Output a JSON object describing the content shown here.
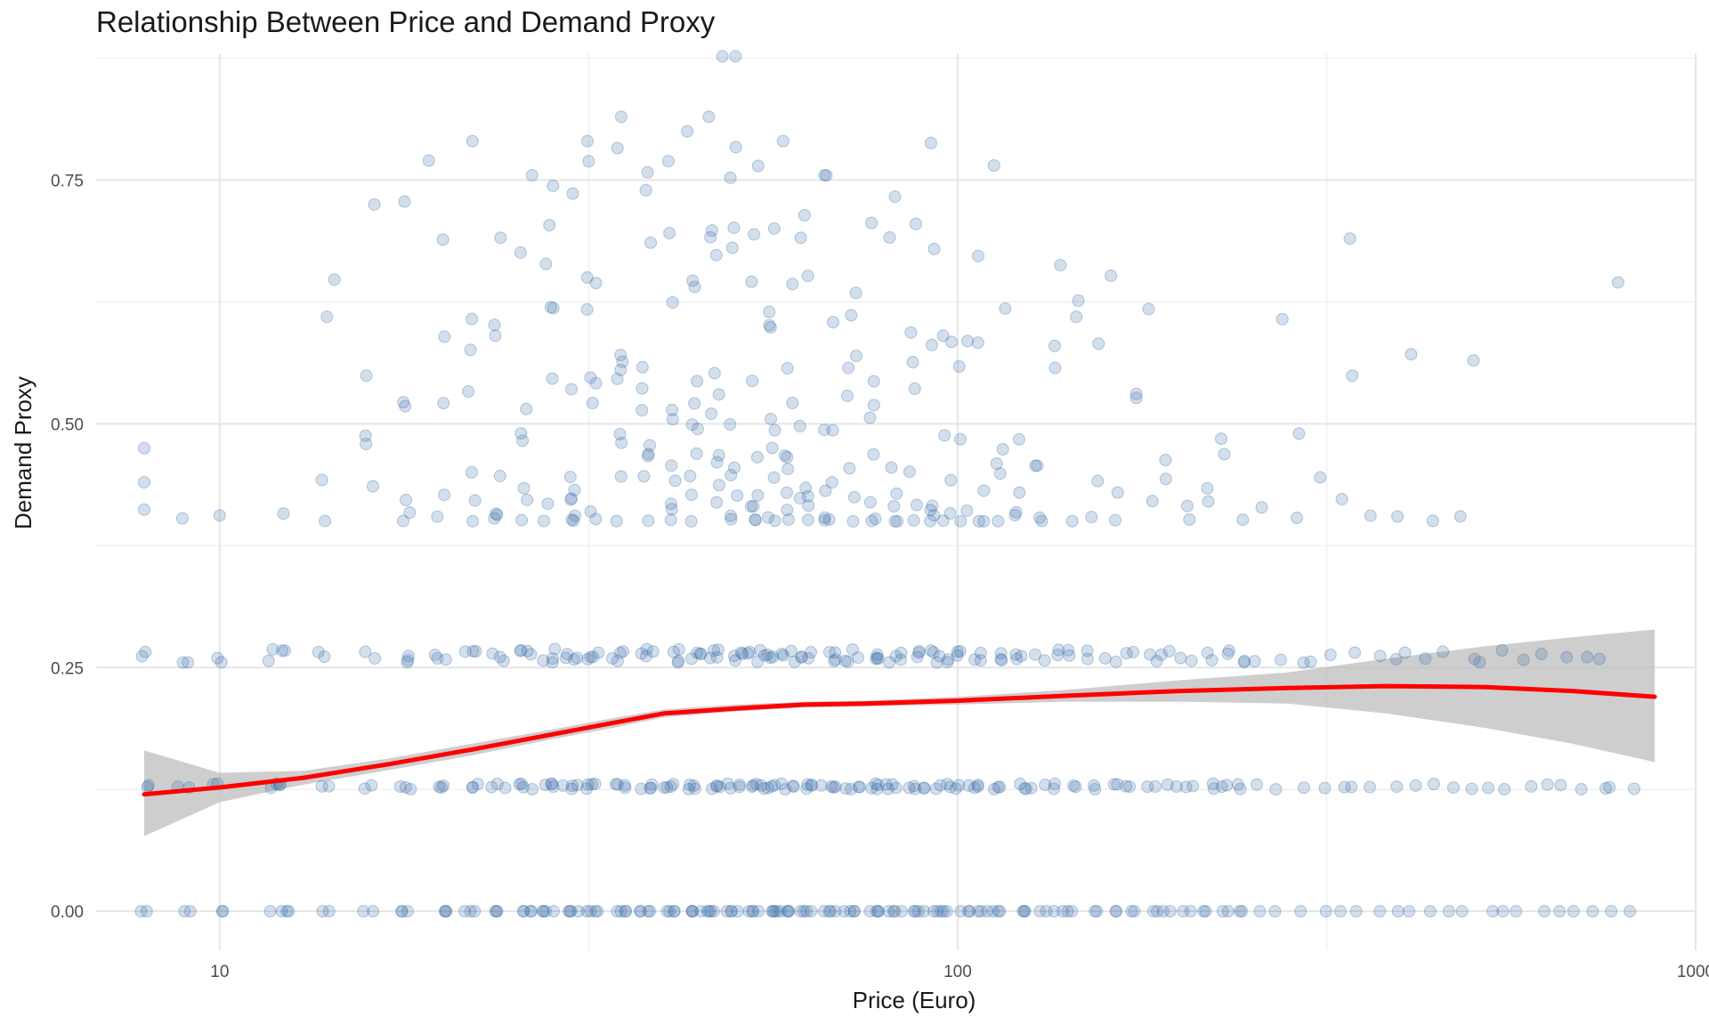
{
  "chart_data": {
    "type": "scatter",
    "title": "Relationship Between Price and Demand Proxy",
    "xlabel": "Price (Euro)",
    "ylabel": "Demand Proxy",
    "x_scale": "log10",
    "xlim": [
      6.8,
      1000
    ],
    "ylim": [
      -0.04,
      0.88
    ],
    "x_ticks": [
      10,
      100,
      1000
    ],
    "x_tick_labels": [
      "10",
      "100",
      "1000"
    ],
    "y_ticks": [
      0.0,
      0.25,
      0.5,
      0.75
    ],
    "y_tick_labels": [
      "0.00",
      "0.25",
      "0.50",
      "0.75"
    ],
    "grid": true,
    "legend": "none",
    "colors": {
      "points": "#3a6ea8",
      "smooth": "#ff0000",
      "band": "#bdbdbd"
    },
    "series": [
      {
        "kind": "points",
        "levels": [
          {
            "y_value": 0.0,
            "x_range": [
              7.9,
              890
            ],
            "density": "high"
          },
          {
            "y_value": 0.128,
            "x_range": [
              7.9,
              860
            ],
            "density": "high"
          },
          {
            "y_value": 0.262,
            "x_range": [
              7.9,
              760
            ],
            "density": "high"
          },
          {
            "y_range": [
              0.4,
              0.88
            ],
            "x_range": [
              7.9,
              800
            ],
            "density": "spread"
          }
        ],
        "outliers": [
          [
            7.9,
            0.475
          ],
          [
            7.9,
            0.44
          ],
          [
            7.9,
            0.412
          ],
          [
            8.9,
            0.403
          ],
          [
            10.0,
            0.406
          ],
          [
            12.2,
            0.408
          ],
          [
            14.3,
            0.648
          ],
          [
            16.2,
            0.725
          ],
          [
            17.8,
            0.728
          ],
          [
            19.2,
            0.77
          ],
          [
            22.0,
            0.79
          ],
          [
            26.5,
            0.755
          ],
          [
            31.5,
            0.79
          ],
          [
            35.0,
            0.815
          ],
          [
            38.0,
            0.758
          ],
          [
            43.0,
            0.8
          ],
          [
            46.0,
            0.815
          ],
          [
            48.0,
            0.877
          ],
          [
            50.0,
            0.877
          ],
          [
            58.0,
            0.79
          ],
          [
            66.0,
            0.755
          ],
          [
            92.0,
            0.788
          ],
          [
            112.0,
            0.765
          ],
          [
            290.0,
            0.49
          ],
          [
            340.0,
            0.69
          ],
          [
            480.0,
            0.405
          ],
          [
            500.0,
            0.565
          ],
          [
            785.0,
            0.645
          ]
        ]
      },
      {
        "kind": "smooth",
        "name": "",
        "x": [
          7.9,
          10,
          13,
          17,
          22,
          28,
          34,
          40,
          50,
          62,
          75,
          100,
          140,
          200,
          280,
          380,
          520,
          680,
          880
        ],
        "y": [
          0.12,
          0.127,
          0.137,
          0.151,
          0.166,
          0.181,
          0.193,
          0.203,
          0.208,
          0.212,
          0.213,
          0.216,
          0.221,
          0.226,
          0.229,
          0.231,
          0.23,
          0.226,
          0.22
        ],
        "band_lower": [
          0.077,
          0.112,
          0.13,
          0.145,
          0.16,
          0.176,
          0.188,
          0.199,
          0.205,
          0.209,
          0.21,
          0.212,
          0.215,
          0.215,
          0.213,
          0.203,
          0.188,
          0.172,
          0.153
        ],
        "band_upper": [
          0.165,
          0.142,
          0.144,
          0.157,
          0.172,
          0.186,
          0.198,
          0.207,
          0.212,
          0.215,
          0.216,
          0.22,
          0.227,
          0.237,
          0.245,
          0.259,
          0.272,
          0.281,
          0.289
        ]
      }
    ]
  }
}
